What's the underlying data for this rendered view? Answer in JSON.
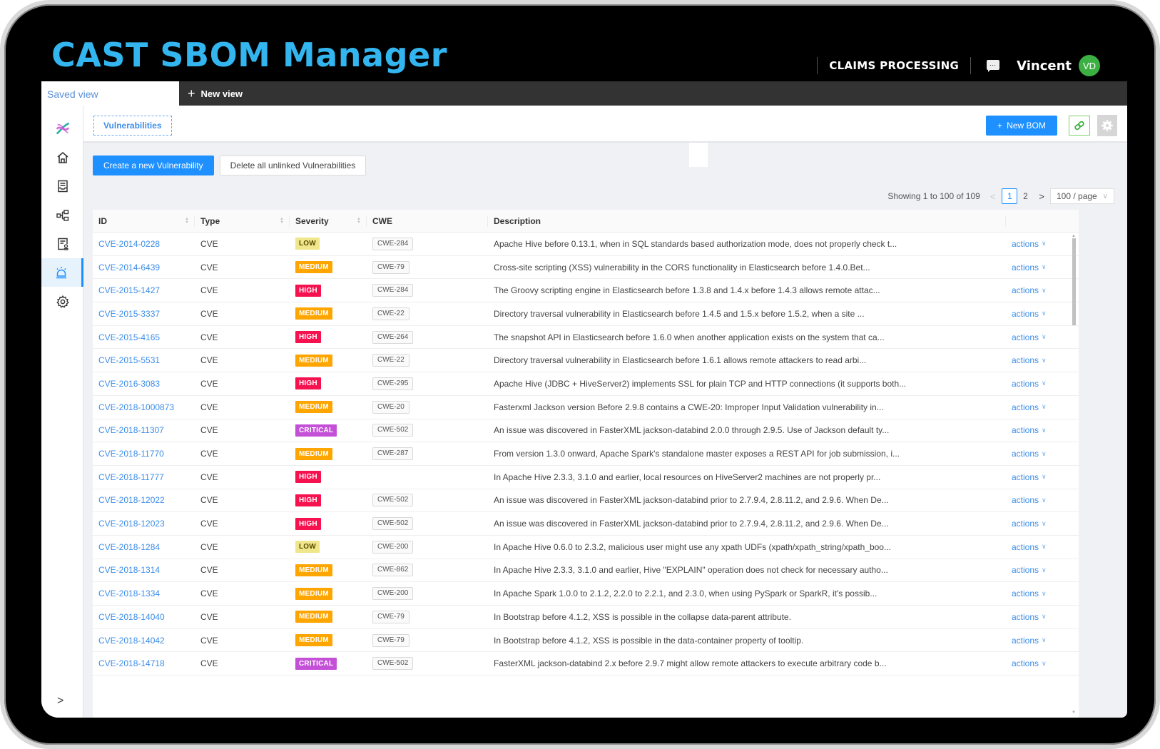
{
  "app": {
    "title": "CAST SBOM Manager",
    "project": "CLAIMS PROCESSING",
    "user": {
      "name": "Vincent",
      "initials": "VD",
      "avatar_color": "#3cb043"
    },
    "brand_color": "#33b5f0"
  },
  "viewbar": {
    "saved_view_label": "Saved view",
    "new_view_label": "New view"
  },
  "sidebar": {
    "items": [
      {
        "icon": "dna-logo-icon",
        "active": false
      },
      {
        "icon": "home-icon",
        "active": false
      },
      {
        "icon": "inbox-document-icon",
        "active": false
      },
      {
        "icon": "hierarchy-icon",
        "active": false
      },
      {
        "icon": "license-certificate-icon",
        "active": false
      },
      {
        "icon": "alarm-siren-icon",
        "active": true
      },
      {
        "icon": "gear-icon",
        "active": false
      }
    ],
    "expand_label": ">"
  },
  "header": {
    "breadcrumb": "Vulnerabilities",
    "new_bom_label": "New BOM",
    "accent_color": "#1e90ff"
  },
  "toolbar": {
    "create_label": "Create a new Vulnerability",
    "delete_label": "Delete all unlinked Vulnerabilities"
  },
  "pagination": {
    "showing": "Showing 1 to 100 of 109",
    "prev": "<",
    "pages": [
      "1",
      "2"
    ],
    "current_page": "1",
    "next": ">",
    "page_size": "100 / page"
  },
  "table": {
    "columns": [
      "ID",
      "Type",
      "Severity",
      "CWE",
      "Description",
      ""
    ],
    "action_label": "actions",
    "severity_colors": {
      "LOW": {
        "bg": "#f0e68c",
        "fg": "#5a4a00"
      },
      "MEDIUM": {
        "bg": "#ffa500",
        "fg": "#ffffff"
      },
      "HIGH": {
        "bg": "#f5124f",
        "fg": "#ffffff"
      },
      "CRITICAL": {
        "bg": "#c450d8",
        "fg": "#ffffff"
      }
    },
    "rows": [
      {
        "id": "CVE-2014-0228",
        "type": "CVE",
        "severity": "LOW",
        "cwe": "CWE-284",
        "description": "Apache Hive before 0.13.1, when in SQL standards based authorization mode, does not properly check t..."
      },
      {
        "id": "CVE-2014-6439",
        "type": "CVE",
        "severity": "MEDIUM",
        "cwe": "CWE-79",
        "description": "Cross-site scripting (XSS) vulnerability in the CORS functionality in Elasticsearch before 1.4.0.Bet..."
      },
      {
        "id": "CVE-2015-1427",
        "type": "CVE",
        "severity": "HIGH",
        "cwe": "CWE-284",
        "description": "The Groovy scripting engine in Elasticsearch before 1.3.8 and 1.4.x before 1.4.3 allows remote attac..."
      },
      {
        "id": "CVE-2015-3337",
        "type": "CVE",
        "severity": "MEDIUM",
        "cwe": "CWE-22",
        "description": "Directory traversal vulnerability in Elasticsearch before 1.4.5 and 1.5.x before 1.5.2, when a site ..."
      },
      {
        "id": "CVE-2015-4165",
        "type": "CVE",
        "severity": "HIGH",
        "cwe": "CWE-264",
        "description": "The snapshot API in Elasticsearch before 1.6.0 when another application exists on the system that ca..."
      },
      {
        "id": "CVE-2015-5531",
        "type": "CVE",
        "severity": "MEDIUM",
        "cwe": "CWE-22",
        "description": "Directory traversal vulnerability in Elasticsearch before 1.6.1 allows remote attackers to read arbi..."
      },
      {
        "id": "CVE-2016-3083",
        "type": "CVE",
        "severity": "HIGH",
        "cwe": "CWE-295",
        "description": "Apache Hive (JDBC + HiveServer2) implements SSL for plain TCP and HTTP connections (it supports both..."
      },
      {
        "id": "CVE-2018-1000873",
        "type": "CVE",
        "severity": "MEDIUM",
        "cwe": "CWE-20",
        "description": "Fasterxml Jackson version Before 2.9.8 contains a CWE-20: Improper Input Validation vulnerability in..."
      },
      {
        "id": "CVE-2018-11307",
        "type": "CVE",
        "severity": "CRITICAL",
        "cwe": "CWE-502",
        "description": "An issue was discovered in FasterXML jackson-databind 2.0.0 through 2.9.5. Use of Jackson default ty..."
      },
      {
        "id": "CVE-2018-11770",
        "type": "CVE",
        "severity": "MEDIUM",
        "cwe": "CWE-287",
        "description": "From version 1.3.0 onward, Apache Spark's standalone master exposes a REST API for job submission, i..."
      },
      {
        "id": "CVE-2018-11777",
        "type": "CVE",
        "severity": "HIGH",
        "cwe": "",
        "description": "In Apache Hive 2.3.3, 3.1.0 and earlier, local resources on HiveServer2 machines are not properly pr..."
      },
      {
        "id": "CVE-2018-12022",
        "type": "CVE",
        "severity": "HIGH",
        "cwe": "CWE-502",
        "description": "An issue was discovered in FasterXML jackson-databind prior to 2.7.9.4, 2.8.11.2, and 2.9.6. When De..."
      },
      {
        "id": "CVE-2018-12023",
        "type": "CVE",
        "severity": "HIGH",
        "cwe": "CWE-502",
        "description": "An issue was discovered in FasterXML jackson-databind prior to 2.7.9.4, 2.8.11.2, and 2.9.6. When De..."
      },
      {
        "id": "CVE-2018-1284",
        "type": "CVE",
        "severity": "LOW",
        "cwe": "CWE-200",
        "description": "In Apache Hive 0.6.0 to 2.3.2, malicious user might use any xpath UDFs (xpath/xpath_string/xpath_boo..."
      },
      {
        "id": "CVE-2018-1314",
        "type": "CVE",
        "severity": "MEDIUM",
        "cwe": "CWE-862",
        "description": "In Apache Hive 2.3.3, 3.1.0 and earlier, Hive \"EXPLAIN\" operation does not check for necessary autho..."
      },
      {
        "id": "CVE-2018-1334",
        "type": "CVE",
        "severity": "MEDIUM",
        "cwe": "CWE-200",
        "description": "In Apache Spark 1.0.0 to 2.1.2, 2.2.0 to 2.2.1, and 2.3.0, when using PySpark or SparkR, it's possib..."
      },
      {
        "id": "CVE-2018-14040",
        "type": "CVE",
        "severity": "MEDIUM",
        "cwe": "CWE-79",
        "description": "In Bootstrap before 4.1.2, XSS is possible in the collapse data-parent attribute."
      },
      {
        "id": "CVE-2018-14042",
        "type": "CVE",
        "severity": "MEDIUM",
        "cwe": "CWE-79",
        "description": "In Bootstrap before 4.1.2, XSS is possible in the data-container property of tooltip."
      },
      {
        "id": "CVE-2018-14718",
        "type": "CVE",
        "severity": "CRITICAL",
        "cwe": "CWE-502",
        "description": "FasterXML jackson-databind 2.x before 2.9.7 might allow remote attackers to execute arbitrary code b..."
      }
    ]
  }
}
